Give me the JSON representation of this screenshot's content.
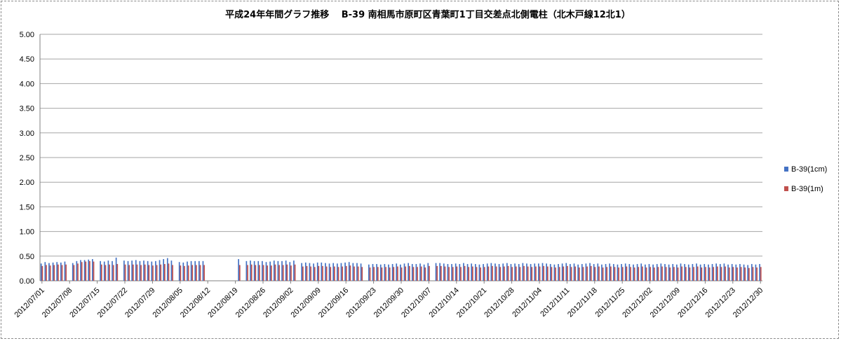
{
  "chart_data": {
    "type": "bar",
    "title": "平成24年年間グラフ推移　 B-39 南相馬市原町区青葉町1丁目交差点北側電柱（北木戸線12北1）",
    "xlabel": "",
    "ylabel": "",
    "ylim": [
      0,
      5
    ],
    "yticks": [
      "0.00",
      "0.50",
      "1.00",
      "1.50",
      "2.00",
      "2.50",
      "3.00",
      "3.50",
      "4.00",
      "4.50",
      "5.00"
    ],
    "grid": true,
    "legend": "right",
    "x_start": "2012/07/01",
    "tick_labels": [
      "2012/07/01",
      "2012/07/08",
      "2012/07/15",
      "2012/07/22",
      "2012/07/29",
      "2012/08/05",
      "2012/08/12",
      "2012/08/19",
      "2012/08/26",
      "2012/09/02",
      "2012/09/09",
      "2012/09/16",
      "2012/09/23",
      "2012/09/30",
      "2012/10/07",
      "2012/10/14",
      "2012/10/21",
      "2012/10/28",
      "2012/11/04",
      "2012/11/11",
      "2012/11/18",
      "2012/11/25",
      "2012/12/02",
      "2012/12/09",
      "2012/12/16",
      "2012/12/23",
      "2012/12/30"
    ],
    "series": [
      {
        "name": "B-39(1cm)",
        "color": "#4472C4",
        "values": [
          0.35,
          0.38,
          0.36,
          0.37,
          0.38,
          0.37,
          0.39,
          null,
          0.36,
          0.4,
          0.42,
          0.42,
          0.43,
          0.44,
          null,
          0.4,
          0.39,
          0.41,
          0.4,
          0.47,
          null,
          0.41,
          0.4,
          0.41,
          0.42,
          0.4,
          0.41,
          0.4,
          0.39,
          0.4,
          0.42,
          0.44,
          0.46,
          0.41,
          null,
          0.38,
          0.37,
          0.39,
          0.4,
          0.4,
          0.4,
          0.4,
          null,
          null,
          null,
          null,
          null,
          null,
          null,
          null,
          0.44,
          null,
          0.4,
          0.41,
          0.4,
          0.4,
          0.4,
          0.38,
          0.39,
          0.41,
          0.4,
          0.4,
          0.41,
          0.38,
          0.41,
          null,
          0.36,
          0.37,
          0.36,
          0.35,
          0.37,
          0.37,
          0.36,
          0.35,
          0.36,
          0.35,
          0.36,
          0.37,
          0.38,
          0.36,
          0.36,
          0.35,
          null,
          0.33,
          0.34,
          0.34,
          0.33,
          0.34,
          0.33,
          0.34,
          0.35,
          0.33,
          0.35,
          0.36,
          0.34,
          0.34,
          0.35,
          0.33,
          0.36,
          null,
          0.36,
          0.36,
          0.35,
          0.34,
          0.34,
          0.35,
          0.34,
          0.36,
          0.34,
          0.35,
          0.34,
          0.33,
          0.34,
          0.35,
          0.36,
          0.35,
          0.34,
          0.35,
          0.36,
          0.34,
          0.35,
          0.34,
          0.36,
          0.35,
          0.34,
          0.35,
          0.35,
          0.36,
          0.35,
          0.34,
          0.33,
          0.34,
          0.35,
          0.36,
          0.34,
          0.35,
          0.33,
          0.34,
          0.35,
          0.36,
          0.34,
          0.35,
          0.33,
          0.34,
          0.35,
          0.34,
          0.33,
          0.34,
          0.35,
          0.34,
          0.33,
          0.34,
          0.35,
          0.33,
          0.34,
          0.33,
          0.34,
          0.35,
          0.34,
          0.33,
          0.34,
          0.33,
          0.35,
          0.34,
          0.33,
          0.34,
          0.35,
          0.33,
          0.34,
          0.33,
          0.34,
          0.35,
          0.34,
          0.35,
          0.33,
          0.34,
          0.33,
          0.34,
          0.33,
          0.32,
          0.34,
          0.33,
          0.34
        ]
      },
      {
        "name": "B-39(1m)",
        "color": "#C0504D",
        "values": [
          0.3,
          0.32,
          0.31,
          0.32,
          0.33,
          0.32,
          0.33,
          null,
          0.32,
          0.35,
          0.38,
          0.39,
          0.4,
          0.39,
          null,
          0.33,
          0.32,
          0.33,
          0.32,
          0.34,
          null,
          0.33,
          0.32,
          0.33,
          0.33,
          0.32,
          0.33,
          0.32,
          0.31,
          0.32,
          0.33,
          0.34,
          0.35,
          0.32,
          null,
          0.31,
          0.3,
          0.31,
          0.32,
          0.32,
          0.32,
          0.32,
          null,
          null,
          null,
          null,
          null,
          null,
          null,
          null,
          0.32,
          null,
          0.32,
          0.33,
          0.32,
          0.32,
          0.32,
          0.31,
          0.31,
          0.33,
          0.32,
          0.32,
          0.33,
          0.31,
          0.33,
          null,
          0.29,
          0.3,
          0.29,
          0.28,
          0.3,
          0.3,
          0.29,
          0.28,
          0.29,
          0.28,
          0.29,
          0.3,
          0.31,
          0.29,
          0.29,
          0.28,
          null,
          0.27,
          0.28,
          0.28,
          0.27,
          0.28,
          0.27,
          0.28,
          0.29,
          0.27,
          0.29,
          0.3,
          0.28,
          0.28,
          0.29,
          0.27,
          0.3,
          null,
          0.3,
          0.3,
          0.29,
          0.28,
          0.28,
          0.29,
          0.28,
          0.3,
          0.28,
          0.29,
          0.28,
          0.27,
          0.28,
          0.29,
          0.3,
          0.29,
          0.28,
          0.29,
          0.3,
          0.28,
          0.29,
          0.28,
          0.3,
          0.29,
          0.28,
          0.29,
          0.29,
          0.3,
          0.29,
          0.28,
          0.27,
          0.28,
          0.29,
          0.3,
          0.28,
          0.29,
          0.27,
          0.28,
          0.29,
          0.3,
          0.28,
          0.29,
          0.27,
          0.28,
          0.29,
          0.28,
          0.27,
          0.28,
          0.29,
          0.28,
          0.27,
          0.28,
          0.29,
          0.27,
          0.28,
          0.27,
          0.28,
          0.29,
          0.28,
          0.27,
          0.28,
          0.27,
          0.29,
          0.28,
          0.27,
          0.28,
          0.29,
          0.27,
          0.28,
          0.27,
          0.28,
          0.29,
          0.28,
          0.29,
          0.27,
          0.28,
          0.27,
          0.28,
          0.27,
          0.26,
          0.28,
          0.27,
          0.28
        ]
      }
    ]
  }
}
